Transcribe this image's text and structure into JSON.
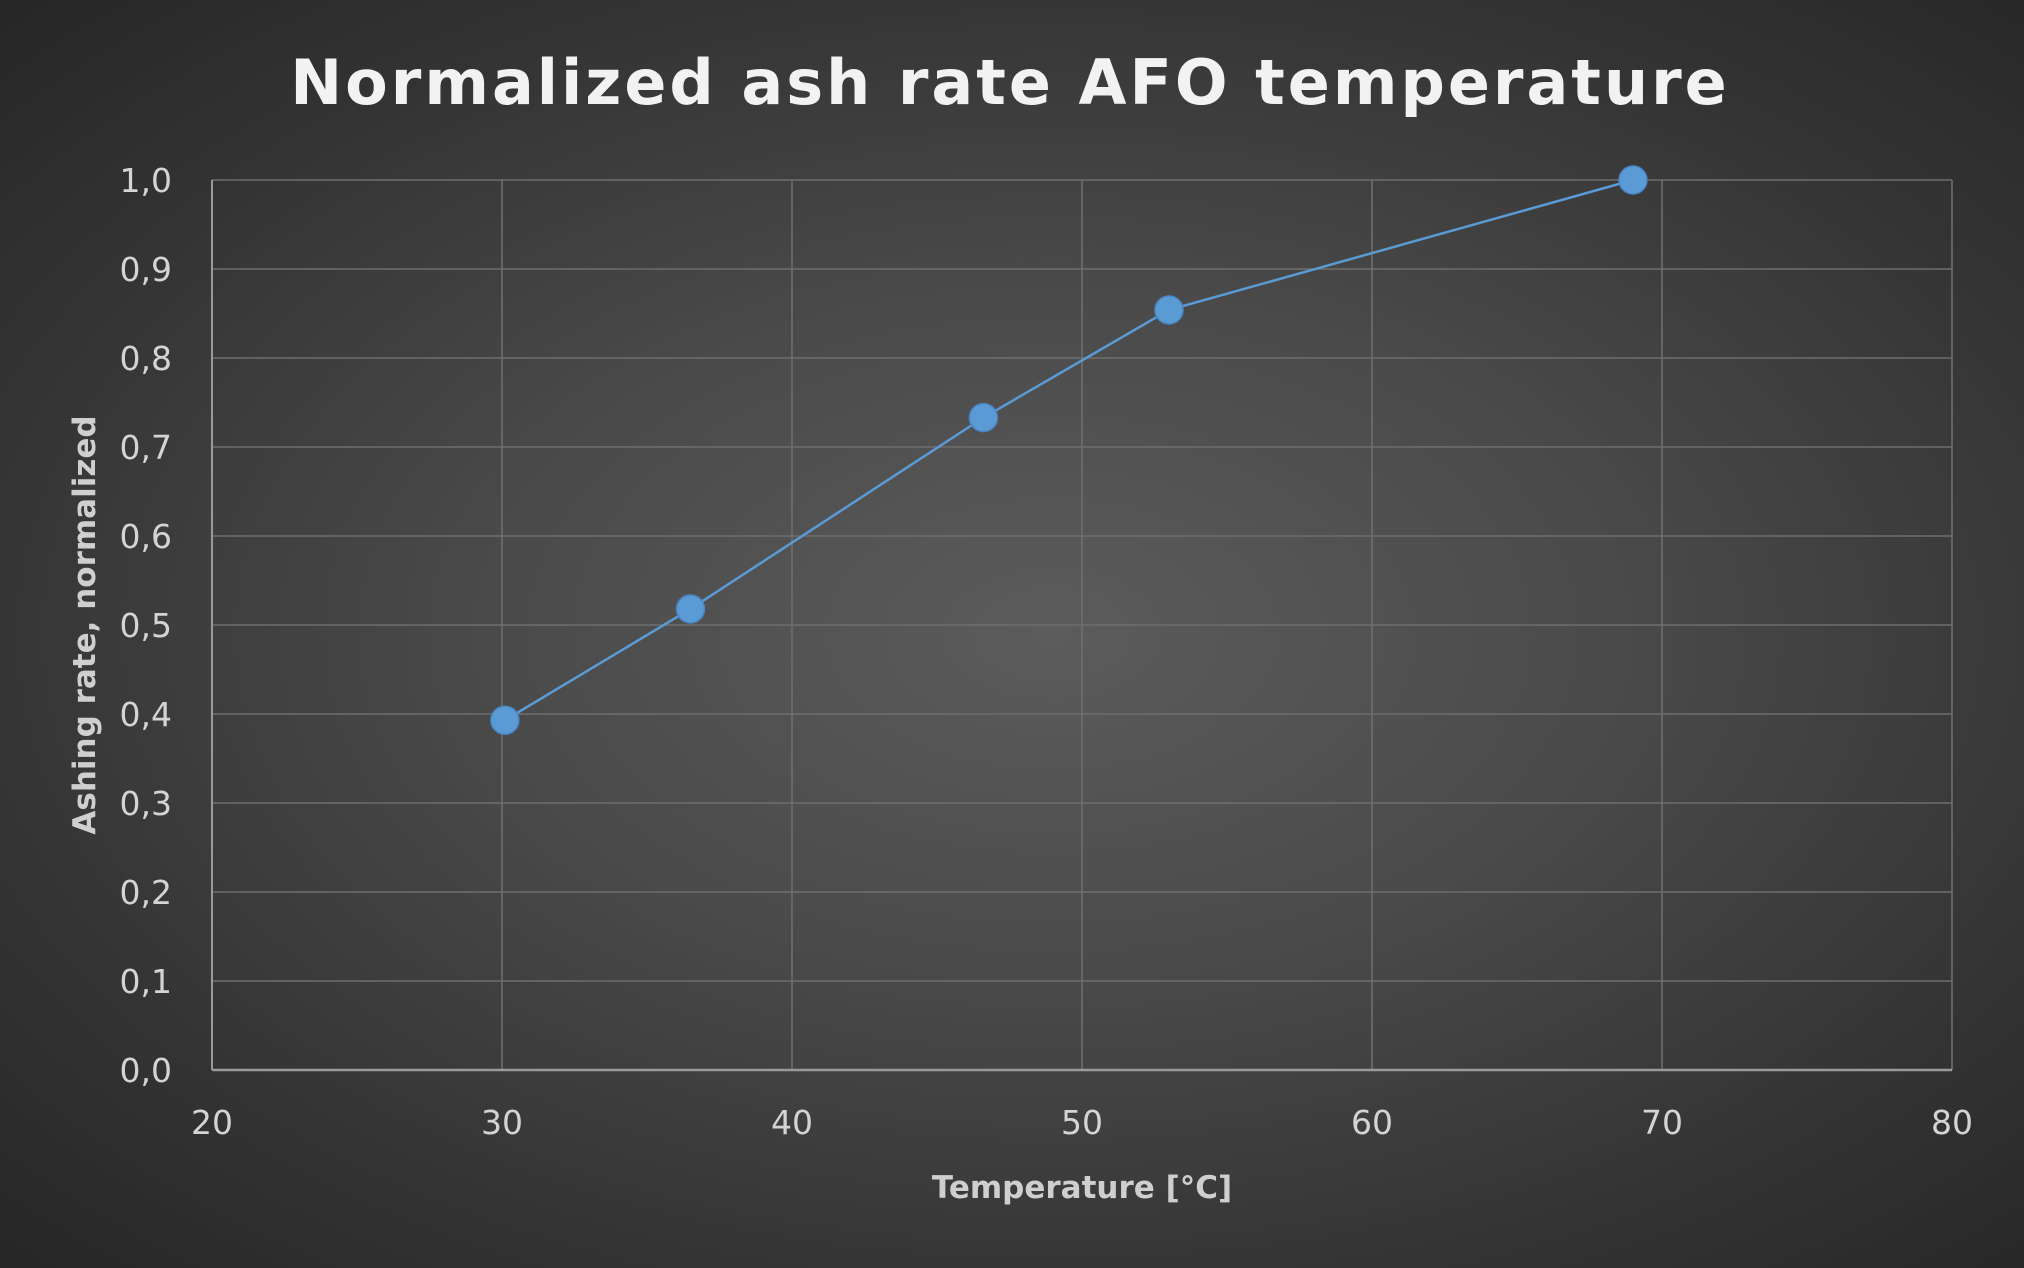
{
  "chart_data": {
    "type": "line",
    "title": "Normalized ash rate AFO temperature",
    "xlabel": "Temperature [°C]",
    "ylabel": "Ashing rate, normalized",
    "xlim": [
      20,
      80
    ],
    "ylim": [
      0,
      1.0
    ],
    "x_ticks": [
      "20",
      "30",
      "40",
      "50",
      "60",
      "70",
      "80"
    ],
    "y_ticks": [
      "0,0",
      "0,1",
      "0,2",
      "0,3",
      "0,4",
      "0,5",
      "0,6",
      "0,7",
      "0,8",
      "0,9",
      "1,0"
    ],
    "grid": true,
    "series": [
      {
        "x": [
          30.1,
          36.5,
          46.6,
          53.0,
          69.0
        ],
        "y": [
          0.393,
          0.518,
          0.733,
          0.854,
          1.0
        ]
      }
    ],
    "colors": {
      "line": "#5b9bd5",
      "marker": "#5b9bd5",
      "grid": "#6e6e6e",
      "axis": "#9a9a9a"
    }
  }
}
